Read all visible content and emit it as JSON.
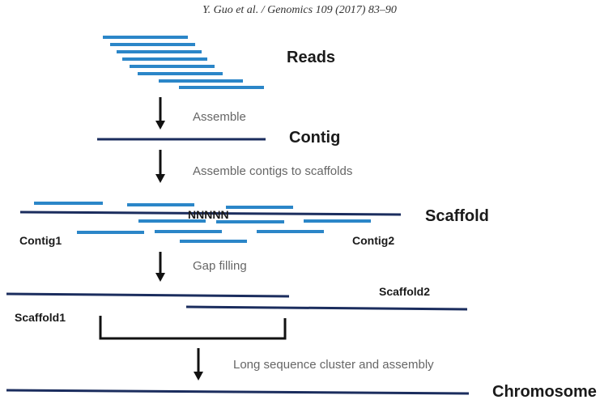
{
  "header": {
    "citation": "Y. Guo et al. / Genomics 109 (2017) 83–90"
  },
  "labels": {
    "reads": "Reads",
    "contig": "Contig",
    "scaffold": "Scaffold",
    "contig1": "Contig1",
    "contig2": "Contig2",
    "gaps": "NNNNN",
    "scaffold1": "Scaffold1",
    "scaffold2": "Scaffold2",
    "chromosome": "Chromosome"
  },
  "steps": {
    "assemble": "Assemble",
    "contigs_to_scaffolds": "Assemble contigs to scaffolds",
    "gap_filling": "Gap filling",
    "long_sequence": "Long sequence cluster and assembly"
  },
  "colors": {
    "read": "#2b86c8",
    "sequence": "#1b2d5e",
    "arrow": "#111111",
    "step_text": "#666666"
  }
}
